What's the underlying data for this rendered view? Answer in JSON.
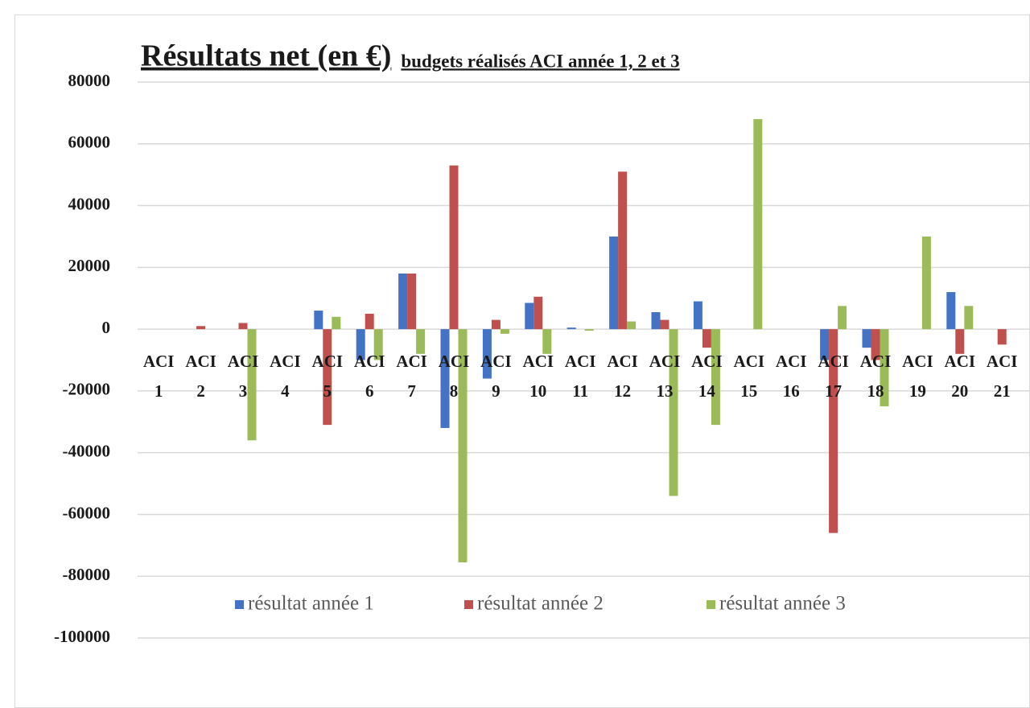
{
  "chart_data": {
    "type": "bar",
    "title": "Résultats net (en €)",
    "subtitle": "budgets réalisés ACI année 1, 2 et 3",
    "categories": [
      "ACI 1",
      "ACI 2",
      "ACI 3",
      "ACI 4",
      "ACI 5",
      "ACI 6",
      "ACI 7",
      "ACI 8",
      "ACI 9",
      "ACI 10",
      "ACI 11",
      "ACI 12",
      "ACI 13",
      "ACI 14",
      "ACI 15",
      "ACI 16",
      "ACI 17",
      "ACI 18",
      "ACI 19",
      "ACI 20",
      "ACI 21"
    ],
    "series": [
      {
        "name": "résultat année 1",
        "color": "#4472c4",
        "values": [
          0,
          0,
          0,
          0,
          6000,
          -10000,
          18000,
          -32000,
          -16000,
          8500,
          500,
          30000,
          5500,
          9000,
          0,
          0,
          -10000,
          -6000,
          0,
          12000,
          0
        ]
      },
      {
        "name": "résultat année 2",
        "color": "#c0504d",
        "values": [
          0,
          1000,
          2000,
          0,
          -31000,
          5000,
          18000,
          53000,
          3000,
          10500,
          0,
          51000,
          3000,
          -6000,
          0,
          0,
          -66000,
          -10000,
          0,
          -8000,
          -5000
        ]
      },
      {
        "name": "résultat année 3",
        "color": "#9bbb59",
        "values": [
          0,
          0,
          -36000,
          0,
          4000,
          -10000,
          -8000,
          -75500,
          -1500,
          -8000,
          -500,
          2500,
          -54000,
          -31000,
          68000,
          0,
          7500,
          -25000,
          30000,
          7500,
          0
        ]
      }
    ],
    "ylim": [
      -100000,
      80000
    ],
    "yticks": [
      -100000,
      -80000,
      -60000,
      -40000,
      -20000,
      0,
      20000,
      40000,
      60000,
      80000
    ],
    "grid": true,
    "legend": "bottom"
  }
}
